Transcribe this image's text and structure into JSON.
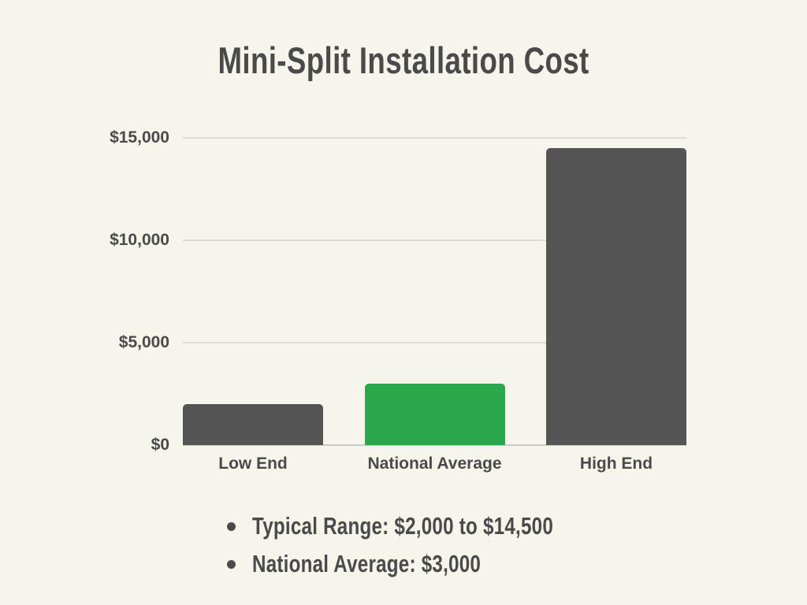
{
  "page": {
    "background_color": "#F5F5EC",
    "text_color": "#4A4A4A"
  },
  "chart_data": {
    "type": "bar",
    "title": "Mini-Split Installation Cost",
    "categories": [
      "Low End",
      "National Average",
      "High End"
    ],
    "values": [
      2000,
      3000,
      14500
    ],
    "bar_colors": [
      "#545454",
      "#2BA84C",
      "#545454"
    ],
    "xlabel": "",
    "ylabel": "",
    "ylim": [
      0,
      15000
    ],
    "yticks": [
      {
        "value": 0,
        "label": "$0"
      },
      {
        "value": 5000,
        "label": "$5,000"
      },
      {
        "value": 10000,
        "label": "$10,000"
      },
      {
        "value": 15000,
        "label": "$15,000"
      }
    ],
    "grid": "horizontal",
    "legend": "none",
    "gridline_color": "#DCDCD4",
    "baseline_color": "#CBCBC4",
    "annotations": [
      "Typical Range: $2,000 to $14,500",
      "National Average: $3,000"
    ]
  }
}
